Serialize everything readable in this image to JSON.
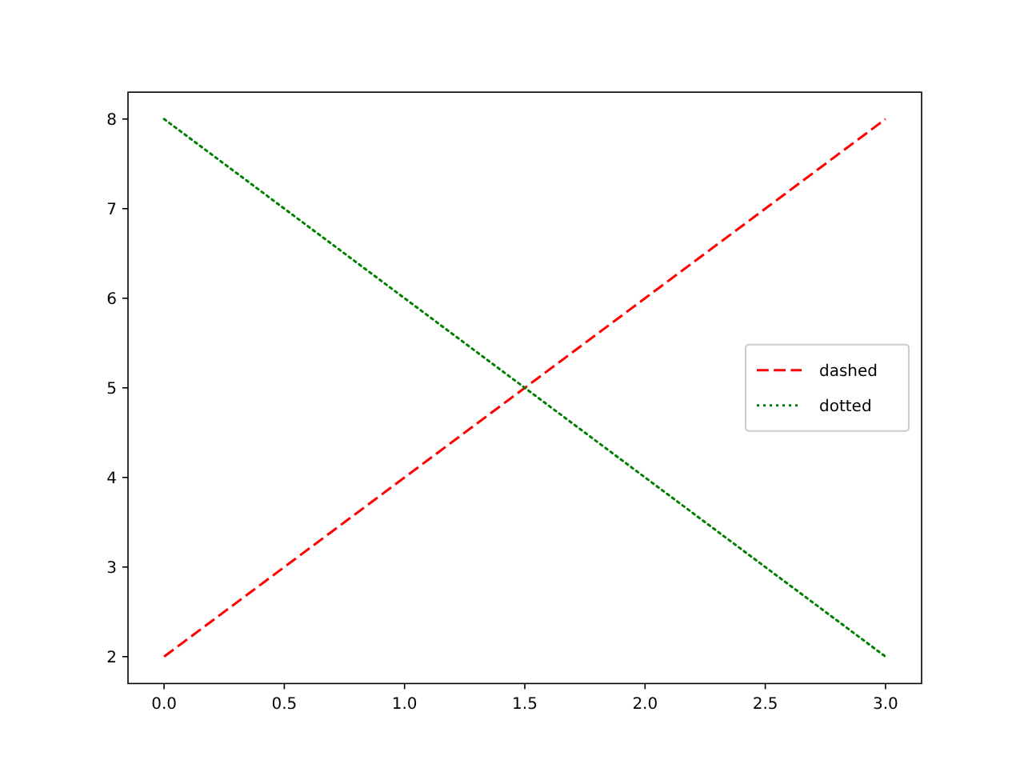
{
  "chart_data": {
    "type": "line",
    "x": [
      0,
      1,
      2,
      3
    ],
    "xlim": [
      -0.15,
      3.15
    ],
    "ylim": [
      1.7,
      8.3
    ],
    "xticks": [
      {
        "value": 0,
        "label": "0.0"
      },
      {
        "value": 0.5,
        "label": "0.5"
      },
      {
        "value": 1,
        "label": "1.0"
      },
      {
        "value": 1.5,
        "label": "1.5"
      },
      {
        "value": 2,
        "label": "2.0"
      },
      {
        "value": 2.5,
        "label": "2.5"
      },
      {
        "value": 3,
        "label": "3.0"
      }
    ],
    "yticks": [
      2,
      3,
      4,
      5,
      6,
      7,
      8
    ],
    "grid": false,
    "legend": "right",
    "marker": "none",
    "series": [
      {
        "name": "dashed",
        "color": "#ff0000",
        "values": [
          2,
          4,
          6,
          8
        ],
        "line_style": "dashed"
      },
      {
        "name": "dotted",
        "color": "#008000",
        "values": [
          8,
          6,
          4,
          2
        ],
        "line_style": "dotted"
      }
    ]
  }
}
